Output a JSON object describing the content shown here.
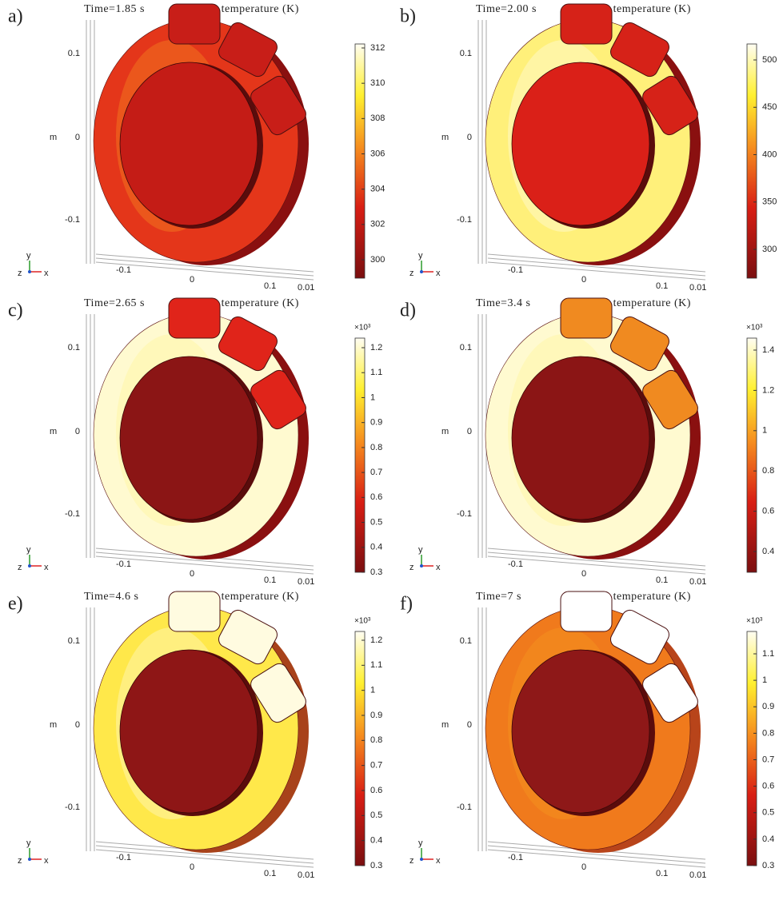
{
  "axes": {
    "unit": "m",
    "y_ticks": [
      "0.1",
      "0",
      "-0.1"
    ],
    "x_ticks": [
      "-0.1",
      "0",
      "0.1",
      "0.01"
    ],
    "triad": [
      "y",
      "z",
      "x"
    ]
  },
  "panels": [
    {
      "label": "a)",
      "time": "Time=1.85 s",
      "title": "Surface: temperature (K)",
      "colorbar_ticks": [
        "312",
        "310",
        "308",
        "306",
        "304",
        "302",
        "300"
      ]
    },
    {
      "label": "b)",
      "time": "Time=2.00 s",
      "title": "Surface: temperature (K)",
      "colorbar_ticks": [
        "500",
        "450",
        "400",
        "350",
        "300"
      ]
    },
    {
      "label": "c)",
      "time": "Time=2.65 s",
      "title": "Surface: temperature (K)",
      "multiplier": "×10³",
      "colorbar_ticks": [
        "1.2",
        "1.1",
        "1",
        "0.9",
        "0.8",
        "0.7",
        "0.6",
        "0.5",
        "0.4",
        "0.3"
      ]
    },
    {
      "label": "d)",
      "time": "Time=3.4 s",
      "title": "Surface: temperature (K)",
      "multiplier": "×10³",
      "colorbar_ticks": [
        "1.4",
        "1.2",
        "1",
        "0.8",
        "0.6",
        "0.4"
      ]
    },
    {
      "label": "e)",
      "time": "Time=4.6 s",
      "title": "Surface: temperature (K)",
      "multiplier": "×10³",
      "colorbar_ticks": [
        "1.2",
        "1.1",
        "1",
        "0.9",
        "0.8",
        "0.7",
        "0.6",
        "0.5",
        "0.4",
        "0.3"
      ]
    },
    {
      "label": "f)",
      "time": "Time=7 s",
      "title": "Surface: temperature (K)",
      "multiplier": "×10³",
      "colorbar_ticks": [
        "1.1",
        "1",
        "0.9",
        "0.8",
        "0.7",
        "0.6",
        "0.5",
        "0.4",
        "0.3"
      ]
    }
  ]
}
